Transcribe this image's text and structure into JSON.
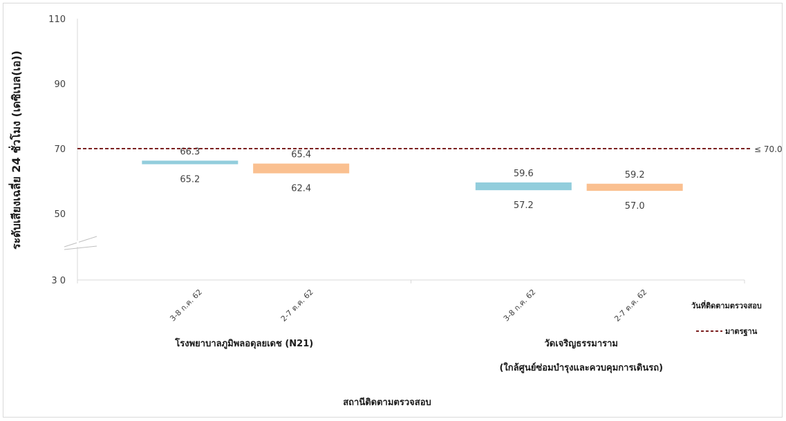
{
  "chart_data": {
    "type": "range-bar",
    "ylabel": "ระดับเสียงเฉลี่ย 24 ชั่วโมง (เดซิเบล(เอ))",
    "xlabel": "สถานีติดตามตรวจสอบ",
    "y_ticks": [
      "110",
      "90",
      "70",
      "50",
      "3 0"
    ],
    "y_tick_values": [
      110,
      90,
      70,
      50,
      30
    ],
    "ylim": [
      30,
      110
    ],
    "axis_break": true,
    "stations": [
      {
        "name": "โรงพยาบาลภูมิพลอดุลยเดช (N21)",
        "name_line2": "",
        "periods": [
          {
            "date": "3-8 ก.ค. 62",
            "max": 66.3,
            "min": 65.2,
            "max_label": "66.3",
            "min_label": "65.2",
            "color": "#92cddc"
          },
          {
            "date": "2-7 ต.ค. 62",
            "max": 65.4,
            "min": 62.4,
            "max_label": "65.4",
            "min_label": "62.4",
            "color": "#fac090"
          }
        ]
      },
      {
        "name": "วัดเจริญธรรมาราม",
        "name_line2": "(ใกล้ศูนย์ซ่อมบำรุงและควบคุมการเดินรถ)",
        "periods": [
          {
            "date": "3-8 ก.ค. 62",
            "max": 59.6,
            "min": 57.2,
            "max_label": "59.6",
            "min_label": "57.2",
            "color": "#92cddc"
          },
          {
            "date": "2-7 ต.ค. 62",
            "max": 59.2,
            "min": 57.0,
            "max_label": "59.2",
            "min_label": "57.0",
            "color": "#fac090"
          }
        ]
      }
    ],
    "standard": {
      "value": 70,
      "label": "≤ 70.0",
      "color": "#7b1f1f"
    },
    "legend": {
      "title": "วันที่ติดตามตรวจสอบ",
      "standard_label": "มาตรฐาน",
      "placement": "right"
    },
    "grid": false
  }
}
